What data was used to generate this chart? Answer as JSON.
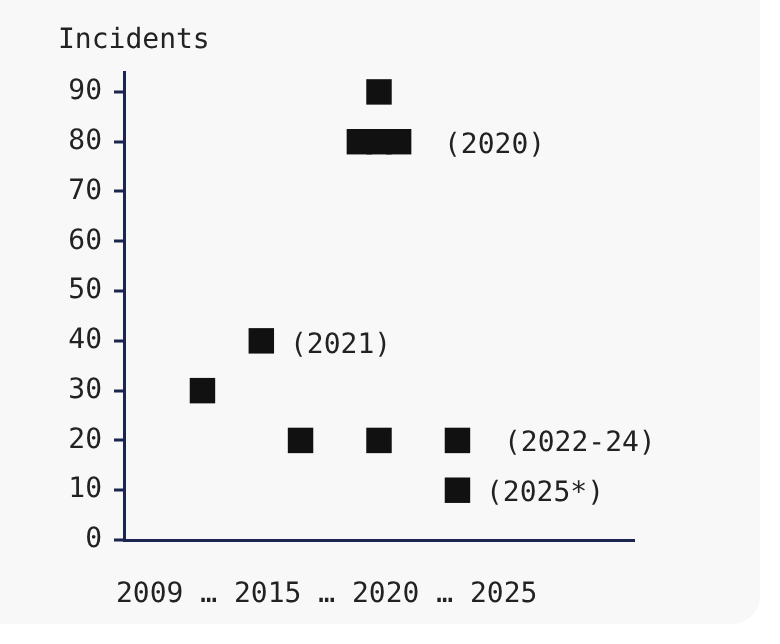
{
  "chart_data": {
    "type": "scatter",
    "ylabel": "Incidents",
    "xlabel": "2009 … 2015 … 2020 … 2025",
    "categories": [
      null,
      null,
      null,
      null,
      null,
      null,
      null,
      null,
      null,
      null,
      null,
      null,
      null,
      null,
      null,
      null,
      null,
      null,
      null,
      null,
      null,
      null,
      null,
      null,
      null,
      null,
      null
    ],
    "series": [
      {
        "color": "#111111",
        "values": [
          null,
          null,
          null,
          null,
          30,
          null,
          null,
          40,
          null,
          20,
          null,
          null,
          80,
          90,
          80,
          null,
          null,
          20,
          null,
          null,
          null,
          null,
          null,
          null,
          null,
          null,
          null
        ]
      },
      {
        "color": "#111111",
        "values": [
          null,
          null,
          null,
          null,
          null,
          null,
          null,
          null,
          null,
          null,
          null,
          null,
          null,
          80,
          null,
          null,
          null,
          10,
          null,
          null,
          null,
          null,
          null,
          null,
          null,
          null,
          null
        ]
      },
      {
        "color": "#111111",
        "values": [
          null,
          null,
          null,
          null,
          null,
          null,
          null,
          null,
          null,
          null,
          null,
          null,
          null,
          20,
          null,
          null,
          null,
          null,
          null,
          null,
          null,
          null,
          null,
          null,
          null,
          null,
          null
        ]
      }
    ],
    "ylim": [
      0,
      94
    ],
    "yticks": [
      0,
      10,
      20,
      30,
      40,
      50,
      60,
      70,
      80,
      90
    ],
    "tick_labels": "y",
    "grid": false,
    "legend": false,
    "marker": "square",
    "annotations": [
      "(2020)",
      "(2021)",
      "(2022-24)",
      "(2025*)"
    ]
  }
}
